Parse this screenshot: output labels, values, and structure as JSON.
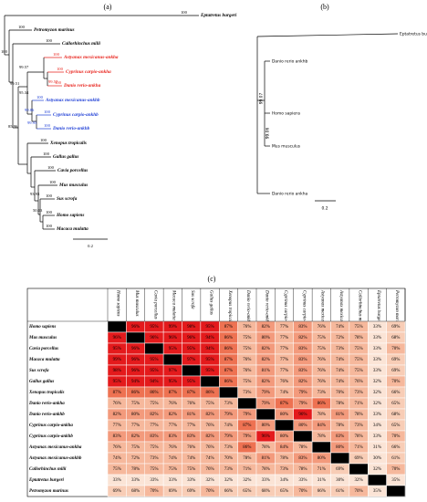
{
  "panels": {
    "a": "(a)",
    "b": "(b)",
    "c": "(c)"
  },
  "tree_a": {
    "group_colors": {
      "ankha": "#e8231c",
      "ankhb": "#1f3fd6",
      "other": "#000000"
    },
    "leaves": [
      {
        "label": "Eptatretus burgeri",
        "support": 100,
        "group": "other"
      },
      {
        "label": "Petromyzon marinus",
        "support": 100,
        "group": "other"
      },
      {
        "label": "Callorhinchus milii",
        "support": 100,
        "group": "other"
      },
      {
        "label": "Astyanax mexicanus-ankha",
        "support": 100,
        "group": "ankha"
      },
      {
        "label": "Cyprinus carpio-ankha",
        "support": 100,
        "group": "ankha"
      },
      {
        "label": "Danio rerio-ankha",
        "support": 100,
        "group": "ankha"
      },
      {
        "label": "Astyanax mexicanus-ankhb",
        "support": 100,
        "group": "ankhb"
      },
      {
        "label": "Cyprinus carpio-ankhb",
        "support": 100,
        "group": "ankhb"
      },
      {
        "label": "Danio rerio-ankhb",
        "support": 100,
        "group": "ankhb"
      },
      {
        "label": "Xenopus tropicalis",
        "support": 100,
        "group": "other"
      },
      {
        "label": "Gallus gallus",
        "support": 100,
        "group": "other"
      },
      {
        "label": "Cavia porcellus",
        "support": 100,
        "group": "other"
      },
      {
        "label": "Mus musculus",
        "support": 100,
        "group": "other"
      },
      {
        "label": "Sus scrofa",
        "support": 100,
        "group": "other"
      },
      {
        "label": "Homo sapiens",
        "support": 100,
        "group": "other"
      },
      {
        "label": "Macaca mulatta",
        "support": 100,
        "group": "other"
      }
    ],
    "internal_support": [
      100,
      99.57,
      99.51,
      99.57,
      95.34,
      99.86,
      99.93,
      85.96,
      93.93,
      50.13
    ],
    "scale": "0.2"
  },
  "tree_b": {
    "leaves": [
      "Eptatretus burgeri",
      "Danio rerio ankhb",
      "Homo sapiens",
      "Mus musculus",
      "Danio rerio ankha"
    ],
    "internal_support": [
      99.07,
      99.06
    ],
    "scale": "0.2"
  },
  "table": {
    "diagonal_color": "#000000",
    "color_scale": [
      {
        "min": 90,
        "color": "#e41a1c"
      },
      {
        "min": 85,
        "color": "#ee7252"
      },
      {
        "min": 79,
        "color": "#f39a7c"
      },
      {
        "min": 70,
        "color": "#f6b89c"
      },
      {
        "min": 60,
        "color": "#f8cdb6"
      },
      {
        "min": 0,
        "color": "#fbe4d6"
      }
    ],
    "columns": [
      "Homo sapiens",
      "Mus musculus",
      "Cavia porcellus",
      "Macaca mulatta",
      "Sus scrofa",
      "Gallus gallus",
      "Xenopus tropicalis",
      "Danio rerio-ankha",
      "Danio rerio-ankhb",
      "Cyprinus carpio-ankha",
      "Cyprinus carpio-ankhb",
      "Astyanax mexicanus-ankha",
      "Astyanax mexicanus-ankhb",
      "Callorhinchus milii",
      "Eptatretus burgeri",
      "Petromyzon marinus"
    ],
    "rows": [
      {
        "label": "Homo sapiens",
        "cells": [
          null,
          "96%",
          "95%",
          "99%",
          "98%",
          "95%",
          "87%",
          "76%",
          "82%",
          "77%",
          "83%",
          "76%",
          "74%",
          "75%",
          "33%",
          "69%"
        ]
      },
      {
        "label": "Mus musculus",
        "cells": [
          "96%",
          null,
          "96%",
          "96%",
          "96%",
          "94%",
          "86%",
          "75%",
          "80%",
          "77%",
          "82%",
          "75%",
          "72%",
          "78%",
          "33%",
          "68%"
        ]
      },
      {
        "label": "Cavia porcellus",
        "cells": [
          "95%",
          "96%",
          null,
          "95%",
          "95%",
          "94%",
          "86%",
          "75%",
          "82%",
          "77%",
          "83%",
          "75%",
          "73%",
          "75%",
          "33%",
          "70%"
        ]
      },
      {
        "label": "Macaca mulatta",
        "cells": [
          "99%",
          "96%",
          "95%",
          null,
          "97%",
          "95%",
          "87%",
          "76%",
          "82%",
          "77%",
          "83%",
          "76%",
          "74%",
          "75%",
          "33%",
          "69%"
        ]
      },
      {
        "label": "Sus scrofa",
        "cells": [
          "98%",
          "96%",
          "95%",
          "97%",
          null,
          "95%",
          "87%",
          "76%",
          "81%",
          "77%",
          "83%",
          "76%",
          "74%",
          "75%",
          "33%",
          "69%"
        ]
      },
      {
        "label": "Gallus gallus",
        "cells": [
          "95%",
          "94%",
          "94%",
          "95%",
          "95%",
          null,
          "86%",
          "75%",
          "82%",
          "76%",
          "82%",
          "76%",
          "74%",
          "76%",
          "32%",
          "70%"
        ]
      },
      {
        "label": "Xenopus tropicalis",
        "cells": [
          "87%",
          "86%",
          "86%",
          "87%",
          "87%",
          "86%",
          null,
          "73%",
          "79%",
          "74%",
          "79%",
          "73%",
          "70%",
          "73%",
          "32%",
          "66%"
        ]
      },
      {
        "label": "Danio rerio-ankha",
        "cells": [
          "76%",
          "75%",
          "75%",
          "76%",
          "76%",
          "75%",
          "73%",
          null,
          "79%",
          "87%",
          "79%",
          "86%",
          "78%",
          "71%",
          "32%",
          "65%"
        ]
      },
      {
        "label": "Danio rerio-ankhb",
        "cells": [
          "82%",
          "80%",
          "82%",
          "82%",
          "81%",
          "82%",
          "79%",
          "79%",
          null,
          "80%",
          "96%",
          "78%",
          "81%",
          "78%",
          "33%",
          "68%"
        ]
      },
      {
        "label": "Cyprinus carpio-ankha",
        "cells": [
          "77%",
          "77%",
          "77%",
          "77%",
          "77%",
          "76%",
          "74%",
          "87%",
          "80%",
          null,
          "80%",
          "84%",
          "78%",
          "73%",
          "34%",
          "65%"
        ]
      },
      {
        "label": "Cyprinus carpio-ankhb",
        "cells": [
          "83%",
          "82%",
          "83%",
          "83%",
          "83%",
          "82%",
          "79%",
          "79%",
          "96%",
          "80%",
          null,
          "78%",
          "83%",
          "78%",
          "33%",
          "70%"
        ]
      },
      {
        "label": "Astyanax mexicanus-ankha",
        "cells": [
          "76%",
          "75%",
          "75%",
          "76%",
          "76%",
          "76%",
          "73%",
          "86%",
          "78%",
          "84%",
          "78%",
          null,
          "80%",
          "71%",
          "31%",
          "66%"
        ]
      },
      {
        "label": "Astyanax mexicanus-ankhb",
        "cells": [
          "74%",
          "72%",
          "73%",
          "74%",
          "74%",
          "74%",
          "70%",
          "78%",
          "81%",
          "78%",
          "83%",
          "80%",
          null,
          "69%",
          "30%",
          "61%"
        ]
      },
      {
        "label": "Callorhinchus milii",
        "cells": [
          "75%",
          "78%",
          "75%",
          "75%",
          "75%",
          "76%",
          "73%",
          "71%",
          "78%",
          "73%",
          "78%",
          "71%",
          "69%",
          null,
          "32%",
          "70%"
        ]
      },
      {
        "label": "Eptatretus burgeri",
        "cells": [
          "33%",
          "33%",
          "33%",
          "33%",
          "33%",
          "32%",
          "32%",
          "32%",
          "33%",
          "34%",
          "33%",
          "31%",
          "30%",
          "32%",
          null,
          "35%"
        ]
      },
      {
        "label": "Petromyzon marinus",
        "cells": [
          "69%",
          "68%",
          "70%",
          "69%",
          "69%",
          "70%",
          "66%",
          "65%",
          "68%",
          "65%",
          "70%",
          "66%",
          "61%",
          "70%",
          "35%",
          null
        ]
      }
    ]
  }
}
